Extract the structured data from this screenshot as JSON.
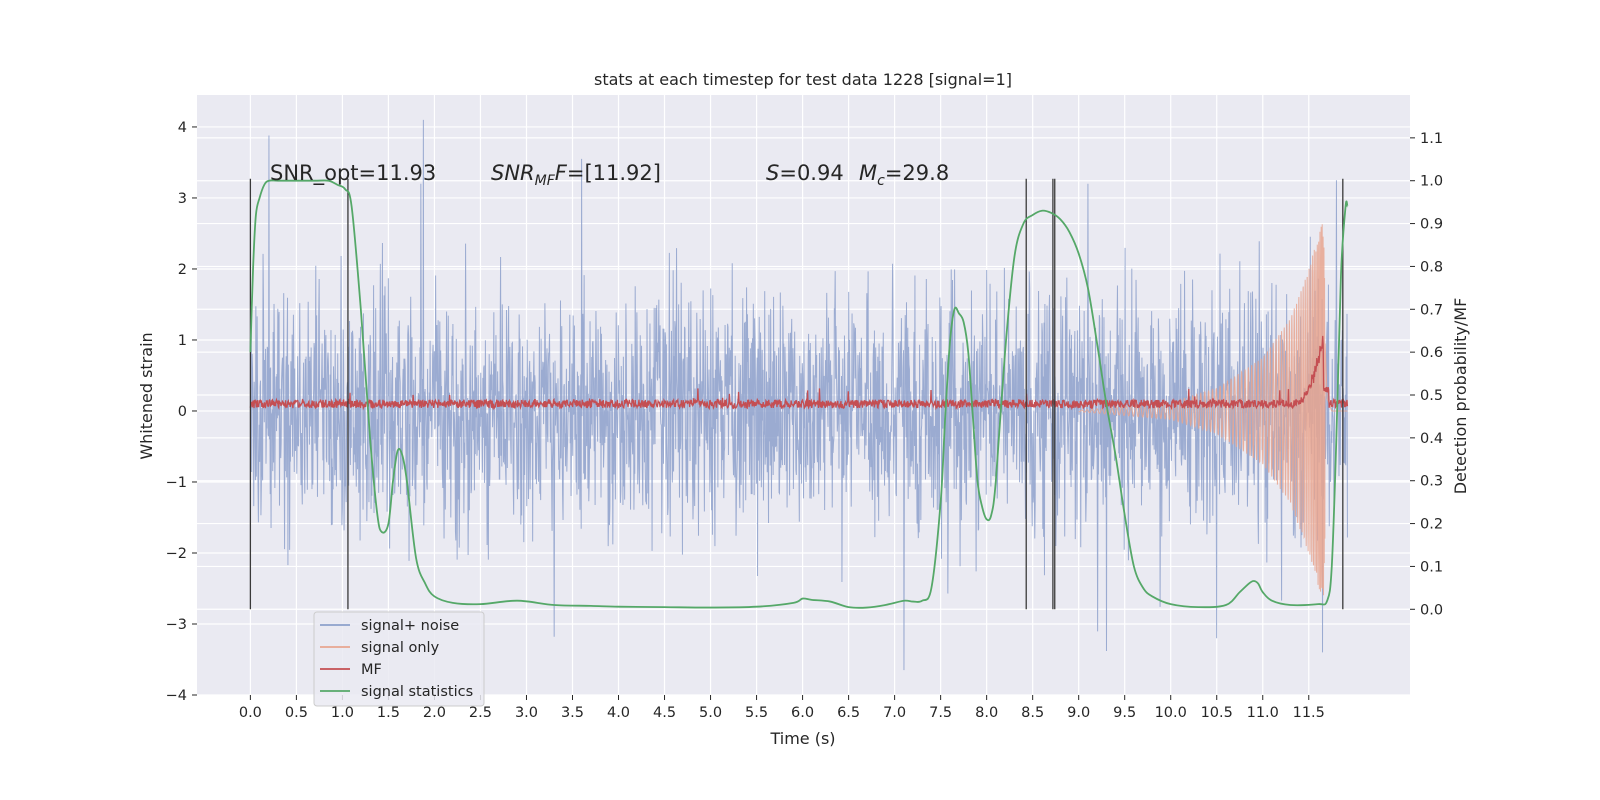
{
  "chart_data": {
    "type": "line",
    "title": "stats at each timestep for test data 1228 [signal=1]",
    "xlabel": "Time (s)",
    "ylabel": "Whitened strain",
    "ylabel_right": "Detection probability/MF",
    "xlim": [
      -0.58,
      12.6
    ],
    "ylim": [
      -4.0,
      4.45
    ],
    "ylim_right": [
      -0.2,
      1.2
    ],
    "x_ticks": [
      0.0,
      0.5,
      1.0,
      1.5,
      2.0,
      2.5,
      3.0,
      3.5,
      4.0,
      4.5,
      5.0,
      5.5,
      6.0,
      6.5,
      7.0,
      7.5,
      8.0,
      8.5,
      9.0,
      9.5,
      10.0,
      10.5,
      11.0,
      11.5
    ],
    "x_tick_labels": [
      "0.0",
      "0.5",
      "1.0",
      "1.5",
      "2.0",
      "2.5",
      "3.0",
      "3.5",
      "4.0",
      "4.5",
      "5.0",
      "5.5",
      "6.0",
      "6.5",
      "7.0",
      "7.5",
      "8.0",
      "8.5",
      "9.0",
      "9.5",
      "10.0",
      "10.5",
      "11.0",
      "11.5"
    ],
    "y_ticks": [
      -4,
      -3,
      -2,
      -1,
      0,
      1,
      2,
      3,
      4
    ],
    "y_tick_labels": [
      "−4",
      "−3",
      "−2",
      "−1",
      "0",
      "1",
      "2",
      "3",
      "4"
    ],
    "y_ticks_right": [
      0.0,
      0.1,
      0.2,
      0.3,
      0.4,
      0.5,
      0.6,
      0.7,
      0.8,
      0.9,
      1.0,
      1.1
    ],
    "y_tick_labels_right": [
      "0.0",
      "0.1",
      "0.2",
      "0.3",
      "0.4",
      "0.5",
      "0.6",
      "0.7",
      "0.8",
      "0.9",
      "1.0",
      "1.1"
    ],
    "grid": true,
    "legend_placement": "lower-left",
    "annotations": {
      "snr_opt": "SNR_opt=11.93",
      "snr_mf_main": "SNR",
      "snr_mf_sub": "MF",
      "snr_mf_rest": "=[11.92]",
      "s_main": "S",
      "s_rest": "=0.94",
      "mc_main": "M",
      "mc_sub": "c",
      "mc_rest": "=29.8"
    },
    "series": [
      {
        "name": "signal+ noise",
        "color": "#8da0cb",
        "opacity": 0.85,
        "duration": 11.92,
        "noise_sigma": 0.85,
        "spikes": [
          [
            0.2,
            3.88
          ],
          [
            1.88,
            4.1
          ],
          [
            1.85,
            3.2
          ],
          [
            3.6,
            3.55
          ],
          [
            7.1,
            -3.65
          ],
          [
            3.3,
            -3.18
          ],
          [
            9.3,
            -3.38
          ],
          [
            11.65,
            -3.4
          ],
          [
            9.1,
            3.2
          ],
          [
            11.8,
            3.25
          ],
          [
            10.5,
            -3.2
          ]
        ]
      },
      {
        "name": "signal only",
        "color": "#e8a58f",
        "opacity": 0.85,
        "chirp": {
          "t_merge": 11.66,
          "t_start": 9.0,
          "peak": 2.7,
          "envelope": [
            [
              9.0,
              0.01
            ],
            [
              10.0,
              0.12
            ],
            [
              10.5,
              0.32
            ],
            [
              11.0,
              0.75
            ],
            [
              11.3,
              1.3
            ],
            [
              11.5,
              2.0
            ],
            [
              11.6,
              2.45
            ],
            [
              11.66,
              2.7
            ],
            [
              11.7,
              0.3
            ],
            [
              11.75,
              0.0
            ]
          ]
        }
      },
      {
        "name": "MF",
        "color": "#c44e52",
        "baseline": 0.1,
        "jitter": 0.06,
        "bump": {
          "t_start": 11.35,
          "t_peak": 11.66,
          "t_end": 11.72,
          "peak": 1.0,
          "sustain": 0.3
        }
      },
      {
        "name": "signal statistics",
        "color": "#55a868",
        "axis": "right",
        "x": [
          0.0,
          0.03,
          0.06,
          0.1,
          0.15,
          0.2,
          0.3,
          0.5,
          0.7,
          0.85,
          0.95,
          1.03,
          1.1,
          1.2,
          1.3,
          1.38,
          1.43,
          1.5,
          1.55,
          1.6,
          1.65,
          1.7,
          1.8,
          1.9,
          2.0,
          2.2,
          2.5,
          2.9,
          3.3,
          3.7,
          4.0,
          4.5,
          5.0,
          5.5,
          5.9,
          6.0,
          6.1,
          6.3,
          6.5,
          6.7,
          6.9,
          7.1,
          7.2,
          7.3,
          7.4,
          7.5,
          7.55,
          7.6,
          7.65,
          7.7,
          7.75,
          7.8,
          7.85,
          7.9,
          7.95,
          8.0,
          8.05,
          8.1,
          8.2,
          8.3,
          8.4,
          8.5,
          8.6,
          8.7,
          8.8,
          8.9,
          9.0,
          9.1,
          9.2,
          9.3,
          9.4,
          9.5,
          9.6,
          9.7,
          9.8,
          10.0,
          10.3,
          10.6,
          10.75,
          10.85,
          10.9,
          10.95,
          11.0,
          11.1,
          11.3,
          11.6,
          11.7,
          11.75,
          11.8,
          11.85,
          11.9,
          11.92
        ],
        "values": [
          0.6,
          0.8,
          0.92,
          0.96,
          0.99,
          1.0,
          1.0,
          1.0,
          1.0,
          1.0,
          0.99,
          0.98,
          0.94,
          0.7,
          0.4,
          0.22,
          0.18,
          0.2,
          0.3,
          0.37,
          0.36,
          0.3,
          0.12,
          0.06,
          0.03,
          0.015,
          0.012,
          0.02,
          0.01,
          0.008,
          0.006,
          0.005,
          0.004,
          0.006,
          0.015,
          0.025,
          0.022,
          0.018,
          0.005,
          0.004,
          0.01,
          0.02,
          0.018,
          0.02,
          0.05,
          0.25,
          0.45,
          0.62,
          0.7,
          0.69,
          0.67,
          0.6,
          0.45,
          0.3,
          0.24,
          0.21,
          0.22,
          0.3,
          0.6,
          0.82,
          0.9,
          0.92,
          0.93,
          0.925,
          0.91,
          0.88,
          0.83,
          0.75,
          0.62,
          0.48,
          0.36,
          0.22,
          0.1,
          0.05,
          0.03,
          0.012,
          0.005,
          0.01,
          0.04,
          0.06,
          0.066,
          0.06,
          0.04,
          0.02,
          0.01,
          0.012,
          0.02,
          0.1,
          0.4,
          0.78,
          0.94,
          0.94
        ]
      }
    ],
    "event_lines_x": [
      0.0,
      1.06,
      8.43,
      8.72,
      8.74,
      11.87
    ],
    "event_lines_range_right": [
      0.0,
      1.0
    ]
  }
}
